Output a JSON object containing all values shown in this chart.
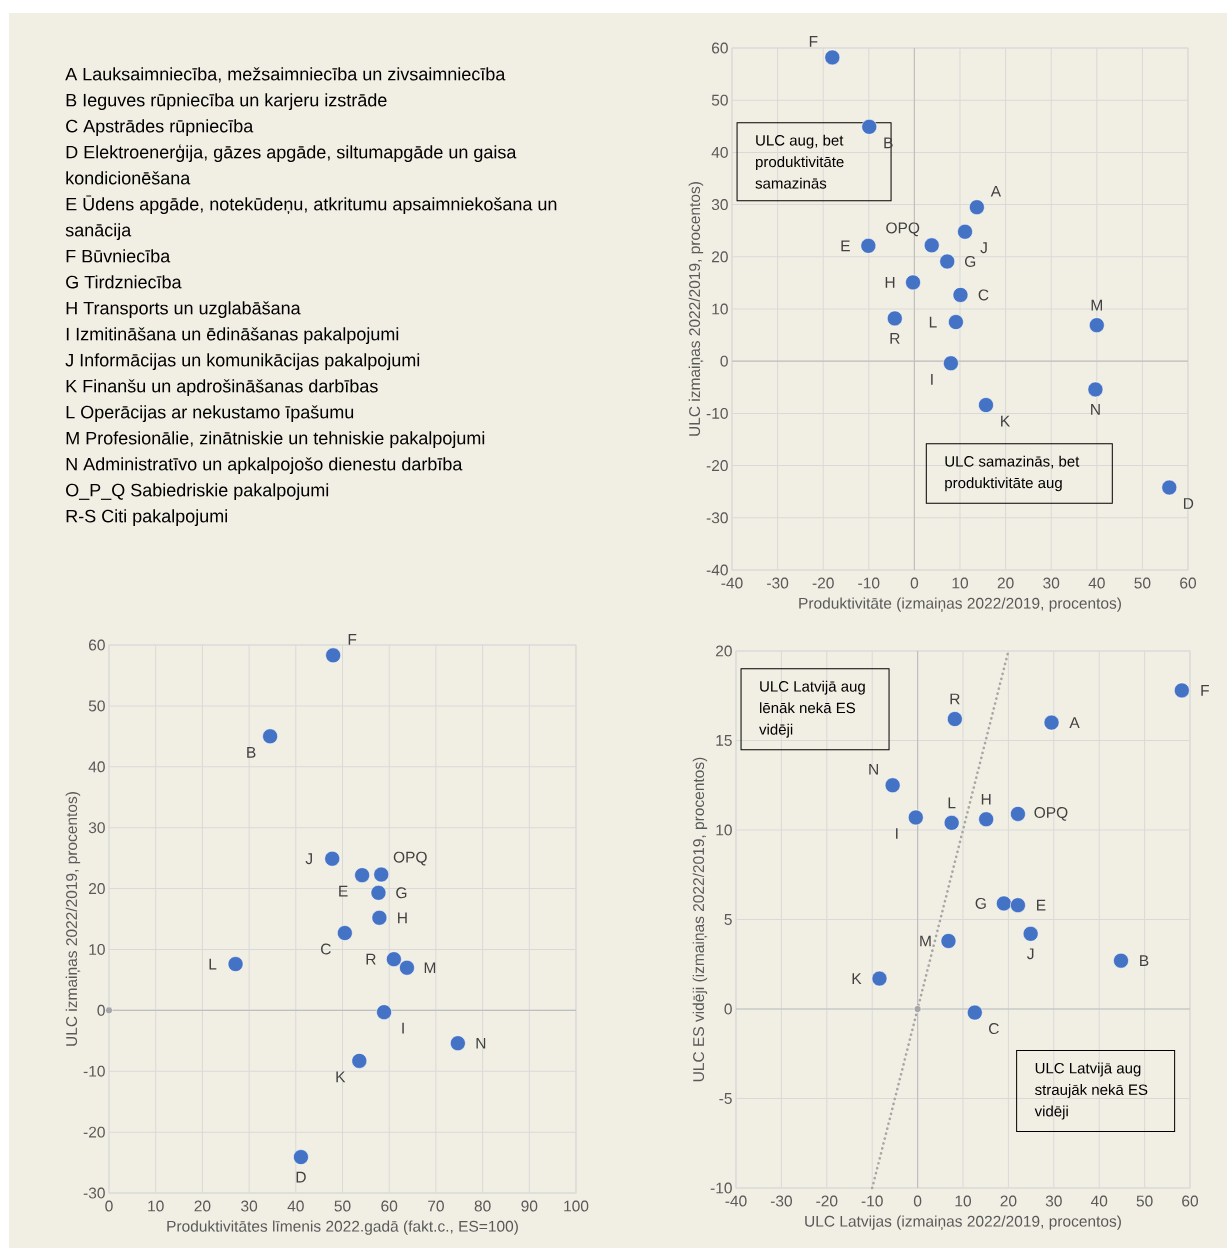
{
  "chart_data": [
    {
      "type": "other",
      "annotations": [
        "A Lauksaimniecība, mežsaimniecība un zivsaimniecība",
        "B Ieguves rūpniecība un karjeru izstrāde",
        "C Apstrādes rūpniecība",
        "D Elektroenerģija, gāzes apgāde, siltumapgāde un gaisa kondicionēšana",
        "E Ūdens apgāde, notekūdeņu, atkritumu apsaimniekošana un sanācija",
        "F Būvniecība",
        "G Tirdzniecība",
        "H Transports un uzglabāšana",
        "I Izmitināšana un ēdināšanas pakalpojumi",
        "J Informācijas un komunikācijas pakalpojumi",
        "K Finanšu un apdrošināšanas darbības",
        "L Operācijas ar nekustamo īpašumu",
        "M Profesionālie, zinātniskie un tehniskie pakalpojumi",
        "N Administratīvo un apkalpojošo dienestu darbība",
        "O_P_Q Sabiedriskie pakalpojumi",
        "R-S Citi pakalpojumi"
      ]
    },
    {
      "type": "scatter",
      "xlabel": "Produktivitāte (izmaiņas 2022/2019, procentos)",
      "ylabel": "ULC izmaiņas 2022/2019, procentos)",
      "xlim": [
        -40,
        60
      ],
      "ylim": [
        -40,
        60
      ],
      "xticks": [
        -40,
        -30,
        -20,
        -10,
        0,
        10,
        20,
        30,
        40,
        50,
        60
      ],
      "yticks": [
        -40,
        -30,
        -20,
        -10,
        0,
        10,
        20,
        30,
        40,
        50,
        60
      ],
      "grid": true,
      "marker": "circle",
      "annotations": [
        "ULC aug, bet produktivitāte samazinās",
        "ULC samazinās, bet produktivitāte aug"
      ],
      "series": [
        {
          "name": "F",
          "color": "#4472c4",
          "x": [
            -18.0
          ],
          "values": [
            58.2
          ]
        },
        {
          "name": "B",
          "color": "#4472c4",
          "x": [
            -9.9
          ],
          "values": [
            44.9
          ]
        },
        {
          "name": "A",
          "color": "#4472c4",
          "x": [
            13.7
          ],
          "values": [
            29.5
          ]
        },
        {
          "name": "J",
          "color": "#4472c4",
          "x": [
            11.1
          ],
          "values": [
            24.8
          ]
        },
        {
          "name": "OPQ",
          "color": "#4472c4",
          "x": [
            3.8
          ],
          "values": [
            22.2
          ]
        },
        {
          "name": "E",
          "color": "#4472c4",
          "x": [
            -10.1
          ],
          "values": [
            22.1
          ]
        },
        {
          "name": "G",
          "color": "#4472c4",
          "x": [
            7.2
          ],
          "values": [
            19.1
          ]
        },
        {
          "name": "H",
          "color": "#4472c4",
          "x": [
            -0.3
          ],
          "values": [
            15.1
          ]
        },
        {
          "name": "C",
          "color": "#4472c4",
          "x": [
            10.1
          ],
          "values": [
            12.7
          ]
        },
        {
          "name": "R",
          "color": "#4472c4",
          "x": [
            -4.3
          ],
          "values": [
            8.2
          ]
        },
        {
          "name": "L",
          "color": "#4472c4",
          "x": [
            9.1
          ],
          "values": [
            7.5
          ]
        },
        {
          "name": "M",
          "color": "#4472c4",
          "x": [
            40.0
          ],
          "values": [
            6.9
          ]
        },
        {
          "name": "I",
          "color": "#4472c4",
          "x": [
            8.0
          ],
          "values": [
            -0.4
          ]
        },
        {
          "name": "N",
          "color": "#4472c4",
          "x": [
            39.7
          ],
          "values": [
            -5.4
          ]
        },
        {
          "name": "K",
          "color": "#4472c4",
          "x": [
            15.7
          ],
          "values": [
            -8.4
          ]
        },
        {
          "name": "D",
          "color": "#4472c4",
          "x": [
            55.9
          ],
          "values": [
            -24.2
          ]
        }
      ]
    },
    {
      "type": "scatter",
      "xlabel": "Produktivitātes līmenis 2022.gadā (fakt.c., ES=100)",
      "ylabel": "ULC izmaiņas 2022/2019, procentos)",
      "xlim": [
        0,
        100
      ],
      "ylim": [
        -30,
        60
      ],
      "xticks": [
        0,
        10,
        20,
        30,
        40,
        50,
        60,
        70,
        80,
        90,
        100
      ],
      "yticks": [
        -30,
        -20,
        -10,
        0,
        10,
        20,
        30,
        40,
        50,
        60
      ],
      "grid": true,
      "marker": "circle",
      "series": [
        {
          "name": "F",
          "color": "#4472c4",
          "x": [
            48.0
          ],
          "values": [
            58.3
          ]
        },
        {
          "name": "B",
          "color": "#4472c4",
          "x": [
            34.5
          ],
          "values": [
            45.0
          ]
        },
        {
          "name": "J",
          "color": "#4472c4",
          "x": [
            47.8
          ],
          "values": [
            24.9
          ]
        },
        {
          "name": "E",
          "color": "#4472c4",
          "x": [
            54.2
          ],
          "values": [
            22.2
          ]
        },
        {
          "name": "OPQ",
          "color": "#4472c4",
          "x": [
            58.3
          ],
          "values": [
            22.3
          ]
        },
        {
          "name": "G",
          "color": "#4472c4",
          "x": [
            57.7
          ],
          "values": [
            19.3
          ]
        },
        {
          "name": "H",
          "color": "#4472c4",
          "x": [
            57.9
          ],
          "values": [
            15.2
          ]
        },
        {
          "name": "C",
          "color": "#4472c4",
          "x": [
            50.5
          ],
          "values": [
            12.7
          ]
        },
        {
          "name": "L",
          "color": "#4472c4",
          "x": [
            27.1
          ],
          "values": [
            7.6
          ]
        },
        {
          "name": "R",
          "color": "#4472c4",
          "x": [
            61.0
          ],
          "values": [
            8.4
          ]
        },
        {
          "name": "M",
          "color": "#4472c4",
          "x": [
            63.8
          ],
          "values": [
            7.0
          ]
        },
        {
          "name": "I",
          "color": "#4472c4",
          "x": [
            58.9
          ],
          "values": [
            -0.3
          ]
        },
        {
          "name": "N",
          "color": "#4472c4",
          "x": [
            74.7
          ],
          "values": [
            -5.4
          ]
        },
        {
          "name": "K",
          "color": "#4472c4",
          "x": [
            53.6
          ],
          "values": [
            -8.3
          ]
        },
        {
          "name": "D",
          "color": "#4472c4",
          "x": [
            41.1
          ],
          "values": [
            -24.1
          ]
        },
        {
          "color": "#a6a6a6",
          "marker": "circle",
          "x": [
            0
          ],
          "values": [
            0
          ]
        }
      ]
    },
    {
      "type": "scatter",
      "xlabel": "ULC Latvijas (izmaiņas 2022/2019, procentos)",
      "ylabel": "ULC ES vidēji (izmaiņas 2022/2019, procentos)",
      "xlim": [
        -40,
        60
      ],
      "ylim": [
        -10,
        20
      ],
      "xticks": [
        -40,
        -30,
        -20,
        -10,
        0,
        10,
        20,
        30,
        40,
        50,
        60
      ],
      "yticks": [
        -10,
        -5,
        0,
        5,
        10,
        15,
        20
      ],
      "grid": true,
      "marker": "circle",
      "annotations": [
        "ULC Latvijā aug lēnāk nekā ES vidēji",
        "ULC Latvijā aug straujāk nekā ES vidēji"
      ],
      "series": [
        {
          "type": "line",
          "color": "#a6a6a6",
          "line_style": "dotted",
          "marker": "none",
          "x": [
            -10,
            20
          ],
          "values": [
            -10,
            20
          ]
        },
        {
          "color": "#a6a6a6",
          "marker": "circle",
          "x": [
            0
          ],
          "values": [
            0
          ]
        },
        {
          "name": "F",
          "color": "#4472c4",
          "x": [
            58.2
          ],
          "values": [
            17.8
          ]
        },
        {
          "name": "R",
          "color": "#4472c4",
          "x": [
            8.2
          ],
          "values": [
            16.2
          ]
        },
        {
          "name": "A",
          "color": "#4472c4",
          "x": [
            29.5
          ],
          "values": [
            16.0
          ]
        },
        {
          "name": "N",
          "color": "#4472c4",
          "x": [
            -5.5
          ],
          "values": [
            12.5
          ]
        },
        {
          "name": "OPQ",
          "color": "#4472c4",
          "x": [
            22.1
          ],
          "values": [
            10.9
          ]
        },
        {
          "name": "I",
          "color": "#4472c4",
          "x": [
            -0.4
          ],
          "values": [
            10.7
          ]
        },
        {
          "name": "H",
          "color": "#4472c4",
          "x": [
            15.1
          ],
          "values": [
            10.6
          ]
        },
        {
          "name": "L",
          "color": "#4472c4",
          "x": [
            7.5
          ],
          "values": [
            10.4
          ]
        },
        {
          "name": "G",
          "color": "#4472c4",
          "x": [
            19.0
          ],
          "values": [
            5.9
          ]
        },
        {
          "name": "E",
          "color": "#4472c4",
          "x": [
            22.1
          ],
          "values": [
            5.8
          ]
        },
        {
          "name": "J",
          "color": "#4472c4",
          "x": [
            24.9
          ],
          "values": [
            4.2
          ]
        },
        {
          "name": "M",
          "color": "#4472c4",
          "x": [
            6.8
          ],
          "values": [
            3.8
          ]
        },
        {
          "name": "B",
          "color": "#4472c4",
          "x": [
            44.8
          ],
          "values": [
            2.7
          ]
        },
        {
          "name": "K",
          "color": "#4472c4",
          "x": [
            -8.4
          ],
          "values": [
            1.7
          ]
        },
        {
          "name": "C",
          "color": "#4472c4",
          "x": [
            12.6
          ],
          "values": [
            -0.2
          ]
        }
      ]
    }
  ]
}
